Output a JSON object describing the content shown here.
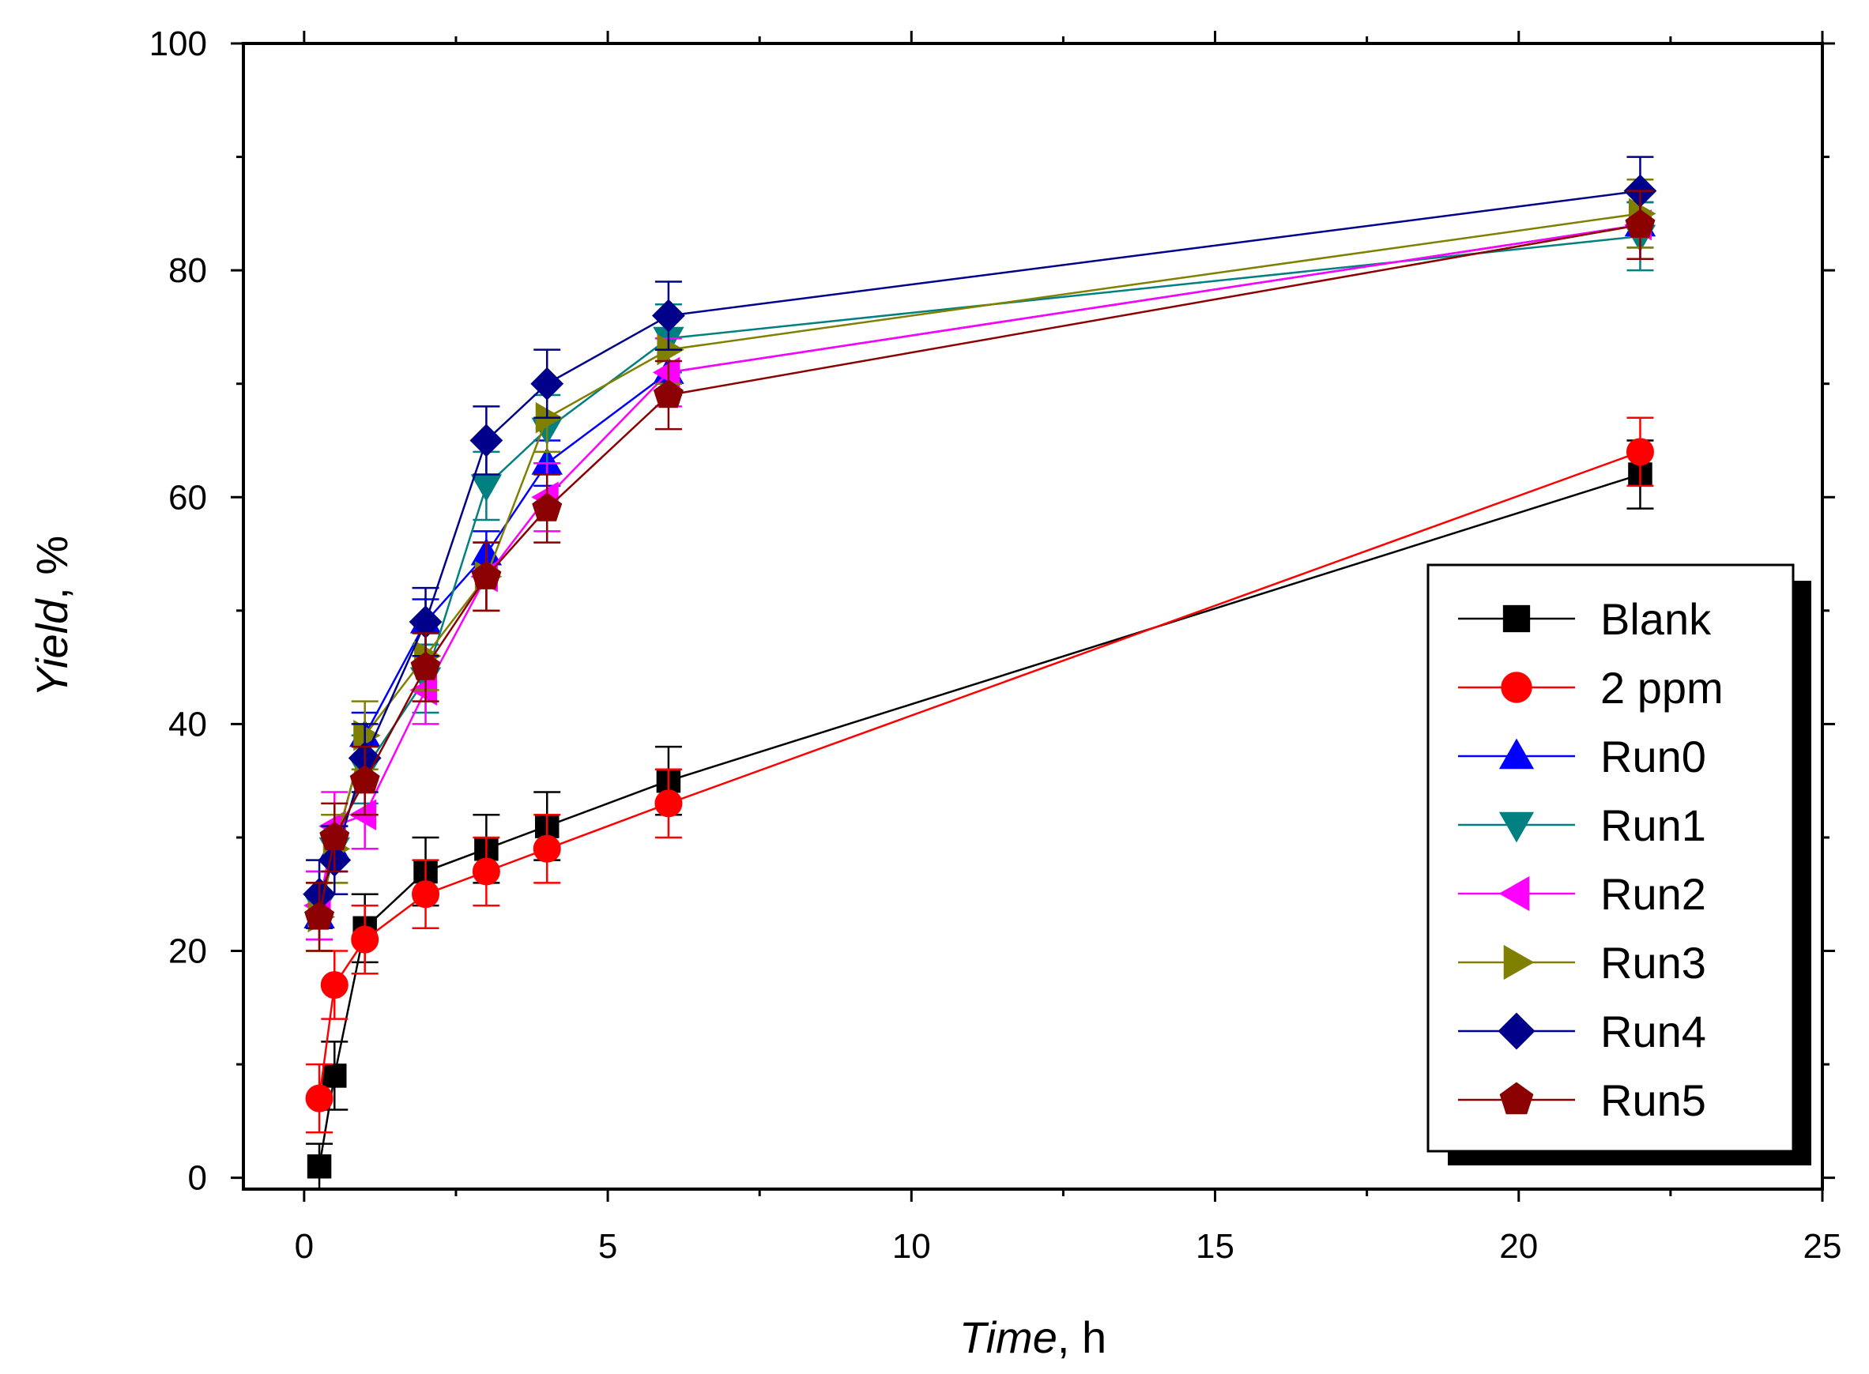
{
  "chart_data": {
    "type": "line",
    "title": "",
    "xlabel": {
      "italic": "Time",
      "rest": ", h"
    },
    "ylabel": {
      "italic": "Yield",
      "rest": ", %"
    },
    "xlim": [
      -1,
      25
    ],
    "ylim": [
      -1,
      100
    ],
    "xticks": [
      0,
      5,
      10,
      15,
      20,
      25
    ],
    "yticks": [
      0,
      20,
      40,
      60,
      80,
      100
    ],
    "legend_position": "bottom-right",
    "series": [
      {
        "name": "Blank",
        "color": "#000000",
        "marker": "square",
        "x": [
          0.25,
          0.5,
          1,
          2,
          3,
          4,
          6,
          22
        ],
        "y": [
          1,
          9,
          22,
          27,
          29,
          31,
          35,
          62
        ],
        "err": [
          2,
          3,
          3,
          3,
          3,
          3,
          3,
          3
        ]
      },
      {
        "name": "2 ppm",
        "color": "#ff0000",
        "marker": "circle",
        "x": [
          0.25,
          0.5,
          1,
          2,
          3,
          4,
          6,
          22
        ],
        "y": [
          7,
          17,
          21,
          25,
          27,
          29,
          33,
          64
        ],
        "err": [
          3,
          3,
          3,
          3,
          3,
          3,
          3,
          3
        ]
      },
      {
        "name": "Run0",
        "color": "#0000ff",
        "marker": "triangle-up",
        "x": [
          0.25,
          0.5,
          1,
          2,
          3,
          4,
          6,
          22
        ],
        "y": [
          23,
          29,
          39,
          49,
          55,
          63,
          71,
          84
        ],
        "err": [
          2,
          2,
          2,
          2,
          2,
          2,
          2,
          2
        ]
      },
      {
        "name": "Run1",
        "color": "#008080",
        "marker": "triangle-down",
        "x": [
          0.25,
          0.5,
          1,
          2,
          3,
          4,
          6,
          22
        ],
        "y": [
          24,
          29,
          36,
          44,
          61,
          66,
          74,
          83
        ],
        "err": [
          3,
          3,
          3,
          3,
          3,
          3,
          3,
          3
        ]
      },
      {
        "name": "Run2",
        "color": "#ff00ff",
        "marker": "triangle-left",
        "x": [
          0.25,
          0.5,
          1,
          2,
          3,
          4,
          6,
          22
        ],
        "y": [
          24,
          31,
          32,
          43,
          53,
          60,
          71,
          84
        ],
        "err": [
          3,
          3,
          3,
          3,
          3,
          3,
          3,
          3
        ]
      },
      {
        "name": "Run3",
        "color": "#808000",
        "marker": "triangle-right",
        "x": [
          0.25,
          0.5,
          1,
          2,
          3,
          4,
          6,
          22
        ],
        "y": [
          23,
          29,
          39,
          46,
          53,
          67,
          73,
          85
        ],
        "err": [
          3,
          3,
          3,
          3,
          3,
          3,
          3,
          3
        ]
      },
      {
        "name": "Run4",
        "color": "#00008b",
        "marker": "diamond",
        "x": [
          0.25,
          0.5,
          1,
          2,
          3,
          4,
          6,
          22
        ],
        "y": [
          25,
          28,
          37,
          49,
          65,
          70,
          76,
          87
        ],
        "err": [
          3,
          3,
          3,
          3,
          3,
          3,
          3,
          3
        ]
      },
      {
        "name": "Run5",
        "color": "#8b0000",
        "marker": "pentagon",
        "x": [
          0.25,
          0.5,
          1,
          2,
          3,
          4,
          6,
          22
        ],
        "y": [
          23,
          30,
          35,
          45,
          53,
          59,
          69,
          84
        ],
        "err": [
          3,
          3,
          3,
          3,
          3,
          3,
          3,
          3
        ]
      }
    ]
  }
}
